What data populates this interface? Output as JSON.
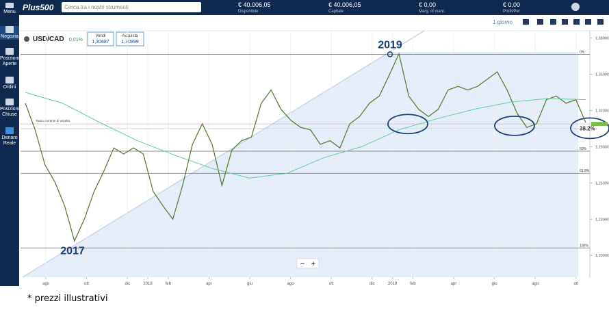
{
  "header": {
    "logo": "Plus500",
    "search": "Cerca tra i nostri strumenti",
    "accounts": [
      {
        "value": "€ 40.006,05",
        "label": "Disponibile"
      },
      {
        "value": "€ 40.006,05",
        "label": "Capitale"
      },
      {
        "value": "€ 0,00",
        "label": "Marg. di mant."
      },
      {
        "value": "€ 0,00",
        "label": "Profit/Per"
      }
    ]
  },
  "sidebar": [
    "Menu",
    "Negozia",
    "Posizioni Aperte",
    "Ordini",
    "Posizioni Chiuse",
    "Denaro Reale"
  ],
  "instrument": {
    "name": "USD/CAD",
    "change": "0,01%",
    "sell_label": "Vendi",
    "sell": {
      "value": 1.30887,
      "label": "1,30887"
    },
    "buy_label": "Acquista",
    "buy": {
      "value": 1.30899,
      "label": "1,30899"
    },
    "current_label": "Tasso corrente di vendita"
  },
  "toolbar": {
    "interval": "1 giorno",
    "zoom_out": "−",
    "zoom_in": "+"
  },
  "chart_data": {
    "type": "line",
    "series": [
      {
        "name": "USD/CAD",
        "color": "#5b7d3a",
        "values": [
          1.326,
          1.304,
          1.275,
          1.261,
          1.241,
          1.212,
          1.23,
          1.253,
          1.27,
          1.289,
          1.284,
          1.289,
          1.284,
          1.253,
          1.241,
          1.23,
          1.258,
          1.292,
          1.309,
          1.292,
          1.258,
          1.287,
          1.295,
          1.298,
          1.326,
          1.337,
          1.321,
          1.312,
          1.306,
          1.304,
          1.292,
          1.295,
          1.289,
          1.309,
          1.315,
          1.326,
          1.332,
          1.349,
          1.367,
          1.332,
          1.321,
          1.315,
          1.321,
          1.337,
          1.34,
          1.337,
          1.34,
          1.346,
          1.352,
          1.337,
          1.318,
          1.306,
          1.309,
          1.329,
          1.332,
          1.326,
          1.329,
          1.31
        ]
      },
      {
        "name": "MA",
        "color": "#5ccf9a",
        "values": [
          1.335,
          1.326,
          1.31,
          1.295,
          1.283,
          1.272,
          1.264,
          1.268,
          1.281,
          1.29,
          1.304,
          1.313,
          1.321,
          1.327,
          1.33,
          1.329
        ]
      }
    ],
    "ylim": [
      1.182,
      1.386
    ],
    "yticks": [
      {
        "value": 1.38,
        "label": "1,38000"
      },
      {
        "value": 1.35,
        "label": "1,35000"
      },
      {
        "value": 1.32,
        "label": "1,32000"
      },
      {
        "value": 1.29,
        "label": "1,29000"
      },
      {
        "value": 1.26,
        "label": "1,26000"
      },
      {
        "value": 1.23,
        "label": "1,23000"
      },
      {
        "value": 1.2,
        "label": "1,20000"
      }
    ],
    "xticks": [
      "ago",
      "ott",
      "dic",
      "2018",
      "feb",
      "apr",
      "giu",
      "ago",
      "ott",
      "dic",
      "2019",
      "feb",
      "apr",
      "giu",
      "ago",
      "ott"
    ],
    "fib": [
      {
        "label": "0%",
        "value": 1.3665
      },
      {
        "label": "38.2%",
        "value": 1.3053
      },
      {
        "label": "50%",
        "value": 1.2863
      },
      {
        "label": "61.8%",
        "value": 1.268
      },
      {
        "label": "100%",
        "value": 1.2062
      }
    ],
    "annotations": [
      {
        "text": "2017"
      },
      {
        "text": "2019"
      }
    ]
  },
  "footnote": "* prezzi illustrativi"
}
